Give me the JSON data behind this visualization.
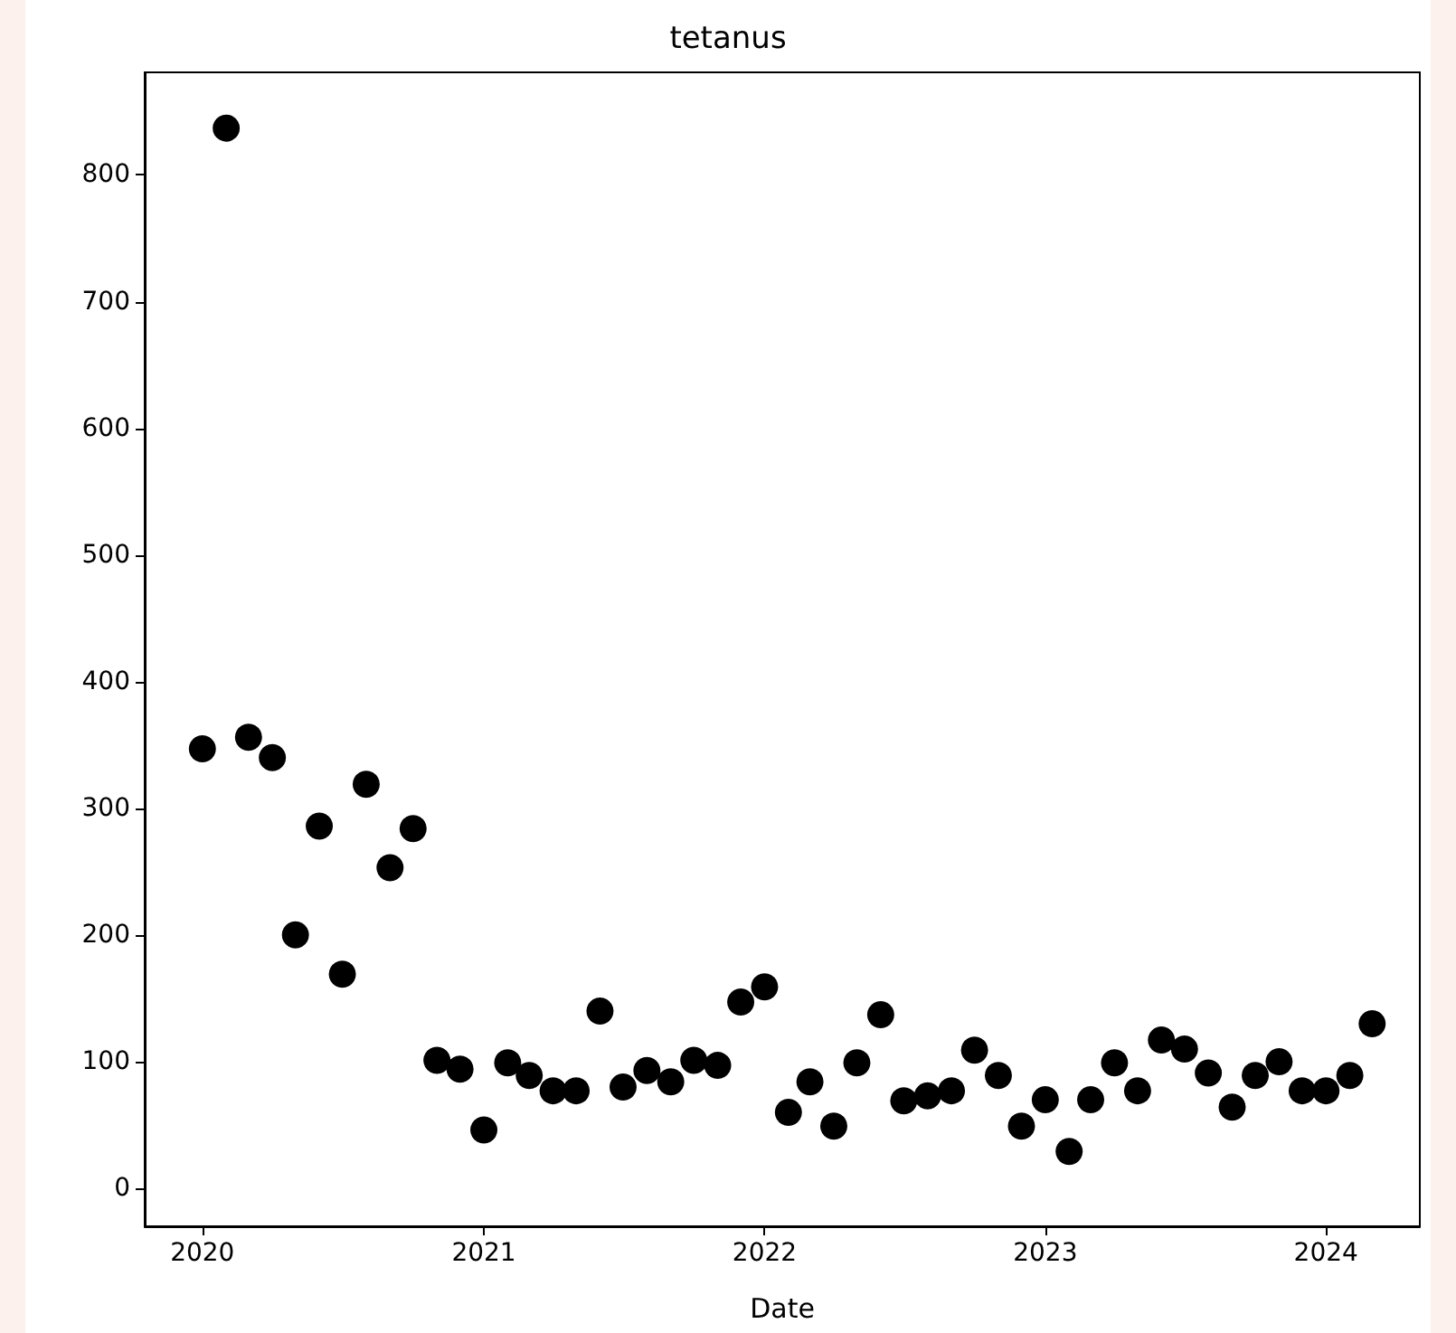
{
  "chart_data": {
    "type": "scatter",
    "title": "tetanus",
    "xlabel": "Date",
    "x": [
      "2020-01",
      "2020-02",
      "2020-03",
      "2020-04",
      "2020-05",
      "2020-06",
      "2020-07",
      "2020-08",
      "2020-09",
      "2020-10",
      "2020-11",
      "2020-12",
      "2021-01",
      "2021-02",
      "2021-03",
      "2021-04",
      "2021-05",
      "2021-06",
      "2021-07",
      "2021-08",
      "2021-09",
      "2021-10",
      "2021-11",
      "2021-12",
      "2022-01",
      "2022-02",
      "2022-03",
      "2022-04",
      "2022-05",
      "2022-06",
      "2022-07",
      "2022-08",
      "2022-09",
      "2022-10",
      "2022-11",
      "2022-12",
      "2023-01",
      "2023-02",
      "2023-03",
      "2023-04",
      "2023-05",
      "2023-06",
      "2023-07",
      "2023-08",
      "2023-09",
      "2023-10",
      "2023-11",
      "2023-12",
      "2024-01",
      "2024-02",
      "2024-03"
    ],
    "series": [
      {
        "color": "#000000",
        "values": [
          347,
          837,
          356,
          340,
          200,
          286,
          169,
          319,
          253,
          284,
          101,
          94,
          46,
          99,
          89,
          77,
          77,
          140,
          80,
          93,
          84,
          101,
          97,
          147,
          159,
          60,
          84,
          49,
          99,
          137,
          69,
          73,
          77,
          109,
          89,
          49,
          70,
          29,
          70,
          99,
          77,
          117,
          110,
          91,
          64,
          89,
          100,
          77,
          77,
          89,
          130
        ]
      }
    ],
    "xlim": [
      "2019-10-18",
      "2024-05-02"
    ],
    "xticks": [
      "2020",
      "2021",
      "2022",
      "2023",
      "2024"
    ],
    "ylim": [
      -30,
      881
    ],
    "yticks": [
      0,
      100,
      200,
      300,
      400,
      500,
      600,
      700,
      800
    ],
    "grid": false,
    "marker": "circle"
  }
}
